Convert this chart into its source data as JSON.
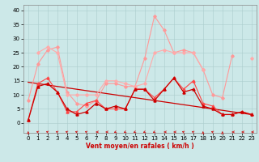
{
  "x": [
    0,
    1,
    2,
    3,
    4,
    5,
    6,
    7,
    8,
    9,
    10,
    11,
    12,
    13,
    14,
    15,
    16,
    17,
    18,
    19,
    20,
    21,
    22,
    23
  ],
  "series": [
    {
      "name": "rafales_max",
      "color": "#ff9999",
      "linewidth": 0.8,
      "marker": "D",
      "markersize": 1.8,
      "values": [
        8,
        21,
        26,
        27,
        11,
        7,
        6,
        8,
        14,
        14,
        13,
        13,
        23,
        38,
        33,
        25,
        26,
        25,
        19,
        10,
        9,
        24,
        null,
        null
      ]
    },
    {
      "name": "rafales_mean",
      "color": "#ffaaaa",
      "linewidth": 0.8,
      "marker": "D",
      "markersize": 1.8,
      "values": [
        null,
        25,
        27,
        25,
        10,
        10,
        10,
        10,
        15,
        15,
        14,
        13,
        14,
        25,
        26,
        25,
        25,
        25,
        19,
        null,
        null,
        null,
        null,
        23
      ]
    },
    {
      "name": "vent_max",
      "color": "#ff4444",
      "linewidth": 0.8,
      "marker": "^",
      "markersize": 2.2,
      "values": [
        1,
        14,
        16,
        11,
        4,
        4,
        7,
        8,
        5,
        5,
        5,
        12,
        12,
        9,
        12,
        16,
        12,
        15,
        7,
        6,
        3,
        3,
        4,
        3
      ]
    },
    {
      "name": "vent_mean",
      "color": "#cc0000",
      "linewidth": 0.9,
      "marker": "^",
      "markersize": 2.2,
      "values": [
        1,
        13,
        14,
        11,
        5,
        3,
        4,
        7,
        5,
        6,
        5,
        12,
        12,
        8,
        12,
        16,
        11,
        12,
        6,
        5,
        3,
        3,
        4,
        3
      ]
    },
    {
      "name": "vent_trend",
      "color": "#cc0000",
      "linewidth": 0.9,
      "marker": null,
      "markersize": 0,
      "values": [
        14.5,
        14.0,
        13.5,
        13.0,
        12.5,
        12.0,
        11.5,
        11.0,
        10.5,
        10.0,
        9.5,
        9.0,
        8.5,
        8.0,
        7.5,
        7.0,
        6.5,
        6.0,
        5.5,
        5.0,
        4.5,
        4.0,
        3.5,
        3.0
      ]
    }
  ],
  "wind_arrows": {
    "x": [
      0,
      1,
      2,
      3,
      4,
      5,
      6,
      7,
      8,
      9,
      10,
      11,
      12,
      13,
      14,
      15,
      16,
      17,
      18,
      19,
      20,
      21,
      22,
      23
    ],
    "angles": [
      180,
      225,
      225,
      225,
      225,
      225,
      225,
      270,
      270,
      315,
      315,
      315,
      315,
      315,
      270,
      270,
      225,
      225,
      180,
      225,
      180,
      270,
      270,
      270
    ]
  },
  "xlabel": "Vent moyen/en rafales ( km/h )",
  "ylim": [
    -3.5,
    42
  ],
  "xlim": [
    -0.5,
    23.5
  ],
  "yticks": [
    0,
    5,
    10,
    15,
    20,
    25,
    30,
    35,
    40
  ],
  "xticks": [
    0,
    1,
    2,
    3,
    4,
    5,
    6,
    7,
    8,
    9,
    10,
    11,
    12,
    13,
    14,
    15,
    16,
    17,
    18,
    19,
    20,
    21,
    22,
    23
  ],
  "background_color": "#cce8e8",
  "grid_color": "#aacccc",
  "arrow_color": "#cc2222",
  "xlabel_color": "#cc0000",
  "xlabel_fontsize": 5.5,
  "tick_fontsize": 5.0
}
